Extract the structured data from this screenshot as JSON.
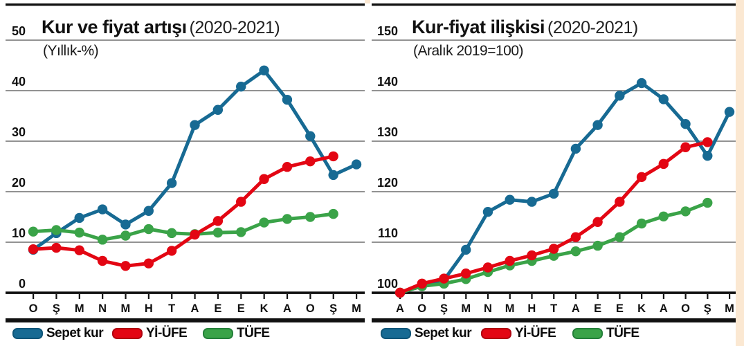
{
  "page": {
    "background_color": "#ffffff",
    "frame_color": "#fbe8d2"
  },
  "chart_data": [
    {
      "type": "line",
      "title": "Kur ve fiyat artışı",
      "title_suffix": "(2020-2021)",
      "subtitle": "(Yıllık-%)",
      "categories": [
        "O",
        "Ş",
        "M",
        "N",
        "M",
        "H",
        "T",
        "A",
        "E",
        "E",
        "K",
        "A",
        "O",
        "Ş",
        "M"
      ],
      "ylim": [
        0,
        50
      ],
      "yticks": [
        0,
        10,
        20,
        30,
        40,
        50
      ],
      "grid": true,
      "legend_position": "bottom",
      "series": [
        {
          "name": "Sepet kur",
          "color": "#176a93",
          "border": "#0e5578",
          "values": [
            8.5,
            11.8,
            14.8,
            16.5,
            13.5,
            16.2,
            21.7,
            33.2,
            36.2,
            40.8,
            44.0,
            38.2,
            31.0,
            23.3,
            25.4
          ]
        },
        {
          "name": "Yİ-ÜFE",
          "color": "#e30613",
          "border": "#b00511",
          "values": [
            8.6,
            8.9,
            8.4,
            6.3,
            5.3,
            5.8,
            8.3,
            11.5,
            14.2,
            18.0,
            22.5,
            24.9,
            26.0,
            27.0,
            null
          ]
        },
        {
          "name": "TÜFE",
          "color": "#3aa348",
          "border": "#25803a",
          "values": [
            12.1,
            12.4,
            11.9,
            10.5,
            11.3,
            12.6,
            11.8,
            11.6,
            11.9,
            12.0,
            13.9,
            14.6,
            15.0,
            15.6,
            null
          ]
        }
      ]
    },
    {
      "type": "line",
      "title": "Kur-fiyat ilişkisi",
      "title_suffix": "(2020-2021)",
      "subtitle": "(Aralık 2019=100)",
      "categories": [
        "A",
        "O",
        "Ş",
        "M",
        "N",
        "M",
        "H",
        "T",
        "A",
        "E",
        "E",
        "K",
        "A",
        "O",
        "Ş",
        "M"
      ],
      "ylim": [
        100,
        150
      ],
      "yticks": [
        100,
        110,
        120,
        130,
        140,
        150
      ],
      "grid": true,
      "legend_position": "bottom",
      "series": [
        {
          "name": "Sepet kur",
          "color": "#176a93",
          "border": "#0e5578",
          "values": [
            100,
            101.3,
            102.5,
            108.5,
            116.0,
            118.4,
            118.0,
            119.6,
            128.5,
            133.2,
            139.0,
            141.5,
            138.3,
            133.4,
            127.1,
            135.8
          ]
        },
        {
          "name": "Yİ-ÜFE",
          "color": "#e30613",
          "border": "#b00511",
          "values": [
            100,
            101.8,
            102.8,
            103.8,
            105.0,
            106.3,
            107.4,
            108.7,
            111.0,
            114.0,
            118.0,
            122.9,
            125.5,
            128.8,
            129.8,
            null
          ]
        },
        {
          "name": "TÜFE",
          "color": "#3aa348",
          "border": "#25803a",
          "values": [
            100,
            101.3,
            101.8,
            102.7,
            104.1,
            105.4,
            106.3,
            107.3,
            108.2,
            109.3,
            111.0,
            113.7,
            115.1,
            116.1,
            117.8,
            null
          ]
        }
      ]
    }
  ],
  "style": {
    "gridline_color": "#6f6f6f",
    "axis_color": "#111111",
    "label_color": "#111111"
  }
}
